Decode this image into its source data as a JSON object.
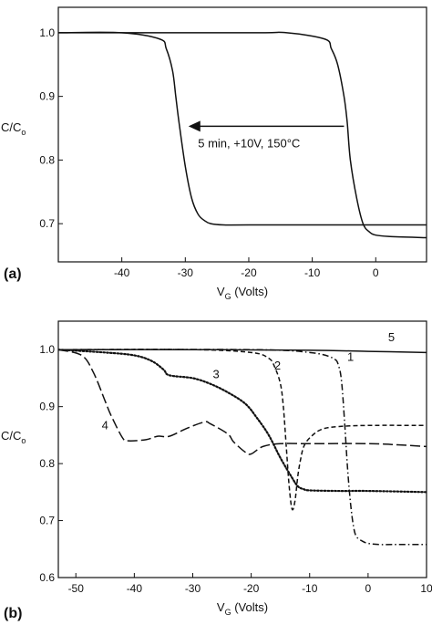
{
  "chart_data": [
    {
      "panel": "(a)",
      "type": "line",
      "title": "",
      "ylabel": "C/C",
      "ylabel_sub": "o",
      "xlabel": "V",
      "xlabel_sub": "G",
      "xlabel_unit": " (Volts)",
      "xlim": [
        -50,
        8
      ],
      "ylim": [
        0.64,
        1.04
      ],
      "xticks": [
        -40,
        -30,
        -20,
        -10,
        0
      ],
      "xtick_labels": [
        "-40",
        "-30",
        "-20",
        "-10",
        "0"
      ],
      "yticks": [
        0.7,
        0.8,
        0.9,
        1.0
      ],
      "ytick_labels": [
        "0.7",
        "0.8",
        "0.9",
        "1.0"
      ],
      "grid": false,
      "annotation": {
        "text": "5 min, +10V, 150°C",
        "arrow_from": [
          -5,
          0.853
        ],
        "arrow_to": [
          -29.5,
          0.853
        ],
        "text_pos": [
          -28,
          0.826
        ]
      },
      "series": [
        {
          "style": "solid",
          "x": [
            -50,
            -40,
            -34,
            -33,
            -32,
            -31.5,
            -31,
            -30,
            -29,
            -28,
            -27,
            -26,
            -24,
            -20,
            0,
            8
          ],
          "y": [
            1.0,
            1.0,
            0.99,
            0.975,
            0.94,
            0.9,
            0.86,
            0.79,
            0.74,
            0.715,
            0.705,
            0.7,
            0.698,
            0.698,
            0.698,
            0.698
          ]
        },
        {
          "style": "solid",
          "x": [
            -50,
            -20,
            -14,
            -8,
            -7,
            -6,
            -5,
            -4.5,
            -4,
            -3,
            -2,
            -1,
            0,
            2,
            8
          ],
          "y": [
            1.0,
            1.0,
            1.0,
            0.99,
            0.975,
            0.95,
            0.9,
            0.86,
            0.8,
            0.74,
            0.7,
            0.687,
            0.682,
            0.68,
            0.678
          ]
        }
      ]
    },
    {
      "panel": "(b)",
      "type": "line",
      "title": "",
      "ylabel": "C/C",
      "ylabel_sub": "o",
      "xlabel": "V",
      "xlabel_sub": "G",
      "xlabel_unit": " (Volts)",
      "xlim": [
        -53,
        10
      ],
      "ylim": [
        0.6,
        1.05
      ],
      "xticks": [
        -50,
        -40,
        -30,
        -20,
        -10,
        0,
        10
      ],
      "xtick_labels": [
        "-50",
        "-40",
        "-30",
        "-20",
        "-10",
        "0",
        "10"
      ],
      "yticks": [
        0.6,
        0.7,
        0.8,
        0.9,
        1.0
      ],
      "ytick_labels": [
        "0.6",
        "0.7",
        "0.8",
        "0.9",
        "1.0"
      ],
      "grid": false,
      "series": [
        {
          "name": "1",
          "style": "dashdot",
          "label_pos": [
            -3,
            0.98
          ],
          "x": [
            -53,
            -20,
            -10,
            -6,
            -5,
            -4.5,
            -4,
            -3.5,
            -3,
            -2.5,
            -2,
            -1,
            0,
            2,
            5,
            10
          ],
          "y": [
            1.0,
            1.0,
            0.995,
            0.985,
            0.97,
            0.94,
            0.87,
            0.79,
            0.73,
            0.69,
            0.672,
            0.664,
            0.66,
            0.658,
            0.658,
            0.658
          ]
        },
        {
          "name": "2",
          "style": "dashed",
          "label_pos": [
            -15.5,
            0.965
          ],
          "x": [
            -53,
            -30,
            -20,
            -17,
            -16,
            -15,
            -14.5,
            -14,
            -13.5,
            -13,
            -12.5,
            -12,
            -11.5,
            -11,
            -10,
            -8,
            -5,
            0,
            10
          ],
          "y": [
            1.0,
            1.0,
            0.995,
            0.985,
            0.97,
            0.94,
            0.9,
            0.83,
            0.76,
            0.72,
            0.735,
            0.78,
            0.81,
            0.83,
            0.845,
            0.86,
            0.865,
            0.867,
            0.867
          ]
        },
        {
          "name": "3",
          "style": "dotted",
          "label_pos": [
            -26,
            0.95
          ],
          "x": [
            -53,
            -45,
            -40,
            -37,
            -35,
            -34,
            -30,
            -27,
            -24,
            -21,
            -19,
            -17,
            -15,
            -13,
            -12,
            -11,
            -10,
            -5,
            0,
            10
          ],
          "y": [
            1.0,
            0.995,
            0.99,
            0.98,
            0.965,
            0.955,
            0.95,
            0.94,
            0.925,
            0.905,
            0.88,
            0.85,
            0.81,
            0.775,
            0.76,
            0.755,
            0.753,
            0.752,
            0.752,
            0.75
          ]
        },
        {
          "name": "4",
          "style": "longdash",
          "label_pos": [
            -45,
            0.86
          ],
          "x": [
            -53,
            -49,
            -47,
            -45,
            -44,
            -42,
            -41,
            -38,
            -36,
            -34,
            -31,
            -28,
            -27,
            -24,
            -23,
            -21,
            -20,
            -18,
            -15,
            -10,
            0,
            5,
            10
          ],
          "y": [
            1.0,
            0.99,
            0.96,
            0.91,
            0.885,
            0.845,
            0.84,
            0.842,
            0.848,
            0.848,
            0.862,
            0.873,
            0.87,
            0.852,
            0.838,
            0.82,
            0.817,
            0.83,
            0.835,
            0.835,
            0.835,
            0.833,
            0.83
          ]
        },
        {
          "name": "5",
          "style": "solid",
          "label_pos": [
            4,
            1.015
          ],
          "x": [
            -53,
            -30,
            -10,
            0,
            10
          ],
          "y": [
            1.0,
            1.0,
            0.999,
            0.997,
            0.995
          ]
        }
      ]
    }
  ]
}
